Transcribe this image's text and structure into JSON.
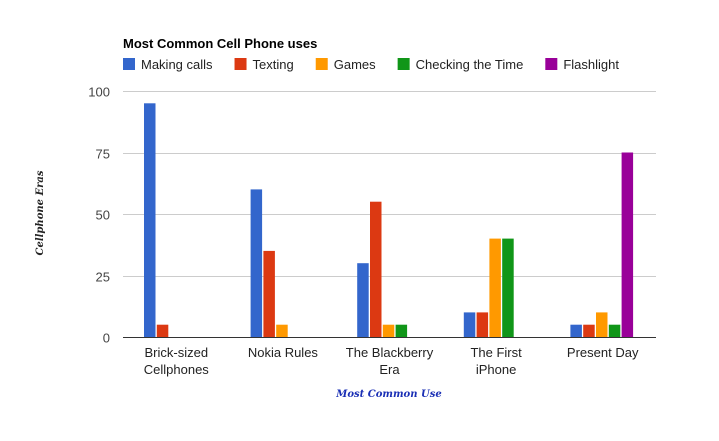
{
  "chart_data": {
    "type": "bar",
    "title": "Most Common Cell Phone uses",
    "xlabel": "Most Common Use",
    "ylabel": "Cellphone Eras",
    "categories": [
      [
        "Brick-sized",
        "Cellphones"
      ],
      [
        "Nokia Rules"
      ],
      [
        "The Blackberry",
        "Era"
      ],
      [
        "The First",
        "iPhone"
      ],
      [
        "Present Day"
      ]
    ],
    "series": [
      {
        "name": "Making calls",
        "color": "#3366cc",
        "values": [
          95,
          60,
          30,
          10,
          5
        ]
      },
      {
        "name": "Texting",
        "color": "#dc3912",
        "values": [
          5,
          35,
          55,
          10,
          5
        ]
      },
      {
        "name": "Games",
        "color": "#ff9900",
        "values": [
          0,
          5,
          5,
          40,
          10
        ]
      },
      {
        "name": "Checking the Time",
        "color": "#109618",
        "values": [
          0,
          0,
          5,
          40,
          5
        ]
      },
      {
        "name": "Flashlight",
        "color": "#990099",
        "values": [
          0,
          0,
          0,
          0,
          75
        ]
      }
    ],
    "ylim": [
      0,
      100
    ],
    "yticks": [
      0,
      25,
      50,
      75,
      100
    ],
    "grid": true,
    "legend_position": "top"
  }
}
